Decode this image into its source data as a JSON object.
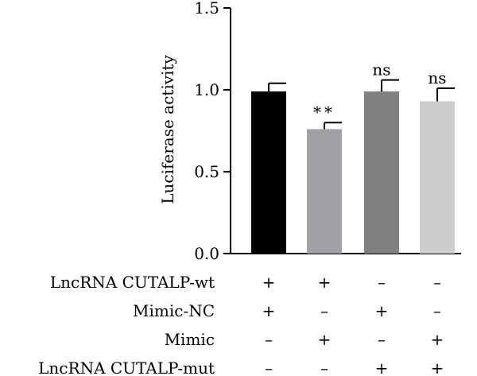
{
  "chart_data": {
    "type": "bar",
    "ylabel": "Luciferase activity",
    "ylim": [
      0,
      1.5
    ],
    "yticks": [
      "0.0",
      "0.5",
      "1.0",
      "1.5"
    ],
    "grid": false,
    "bars": [
      {
        "value": 0.99,
        "error": 0.05,
        "color": "#000000",
        "significance": ""
      },
      {
        "value": 0.76,
        "error": 0.04,
        "color": "#a0a1a5",
        "significance": "**"
      },
      {
        "value": 0.99,
        "error": 0.07,
        "color": "#808080",
        "significance": "ns"
      },
      {
        "value": 0.93,
        "error": 0.08,
        "color": "#cdcdcd",
        "significance": "ns"
      }
    ],
    "conditions": [
      {
        "label": "LncRNA CUTALP-wt",
        "signs": [
          "+",
          "+",
          "–",
          "–"
        ]
      },
      {
        "label": "Mimic-NC",
        "signs": [
          "+",
          "–",
          "+",
          "–"
        ]
      },
      {
        "label": "Mimic",
        "signs": [
          "–",
          "+",
          "–",
          "+"
        ]
      },
      {
        "label": "LncRNA CUTALP-mut",
        "signs": [
          "–",
          "–",
          "+",
          "+"
        ]
      }
    ]
  }
}
